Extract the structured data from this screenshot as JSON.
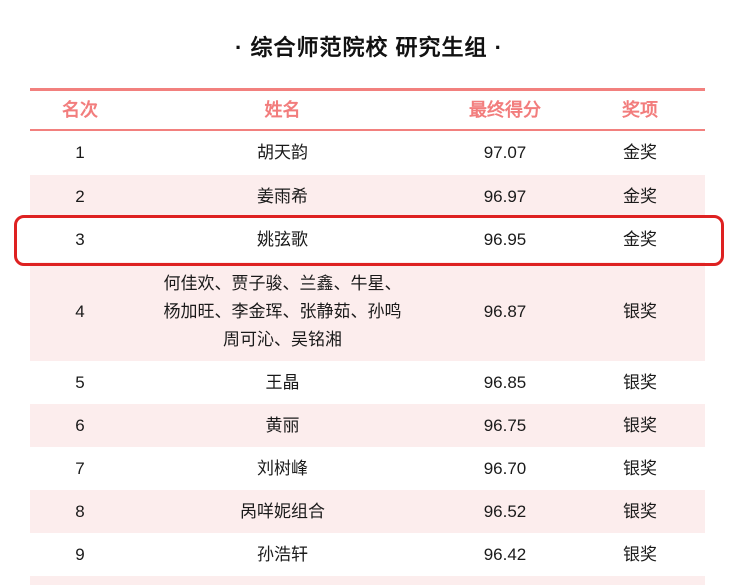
{
  "page": {
    "title": "· 综合师范院校 研究生组 ·"
  },
  "colors": {
    "accent_pink": "#F2807E",
    "header_text_pink": "#F27D7D",
    "row_stripe_pink": "#FCEDED",
    "highlight_red": "#DE2121",
    "body_text": "#1A1A1A",
    "background": "#FFFFFF"
  },
  "table": {
    "headers": [
      "名次",
      "姓名",
      "最终得分",
      "奖项"
    ],
    "rows": [
      {
        "rank": "1",
        "name": "胡天韵",
        "score": "97.07",
        "award": "金奖",
        "highlighted": false
      },
      {
        "rank": "2",
        "name": "姜雨希",
        "score": "96.97",
        "award": "金奖",
        "highlighted": false
      },
      {
        "rank": "3",
        "name": "姚弦歌",
        "score": "96.95",
        "award": "金奖",
        "highlighted": true
      },
      {
        "rank": "4",
        "name": "何佳欢、贾子骏、兰鑫、牛星、\n杨加旺、李金珲、张静茹、孙鸣\n周可沁、吴铭湘",
        "score": "96.87",
        "award": "银奖",
        "highlighted": false
      },
      {
        "rank": "5",
        "name": "王晶",
        "score": "96.85",
        "award": "银奖",
        "highlighted": false
      },
      {
        "rank": "6",
        "name": "黄丽",
        "score": "96.75",
        "award": "银奖",
        "highlighted": false
      },
      {
        "rank": "7",
        "name": "刘树峰",
        "score": "96.70",
        "award": "银奖",
        "highlighted": false
      },
      {
        "rank": "8",
        "name": "呙咩妮组合",
        "score": "96.52",
        "award": "银奖",
        "highlighted": false
      },
      {
        "rank": "9",
        "name": "孙浩轩",
        "score": "96.42",
        "award": "银奖",
        "highlighted": false
      }
    ]
  }
}
